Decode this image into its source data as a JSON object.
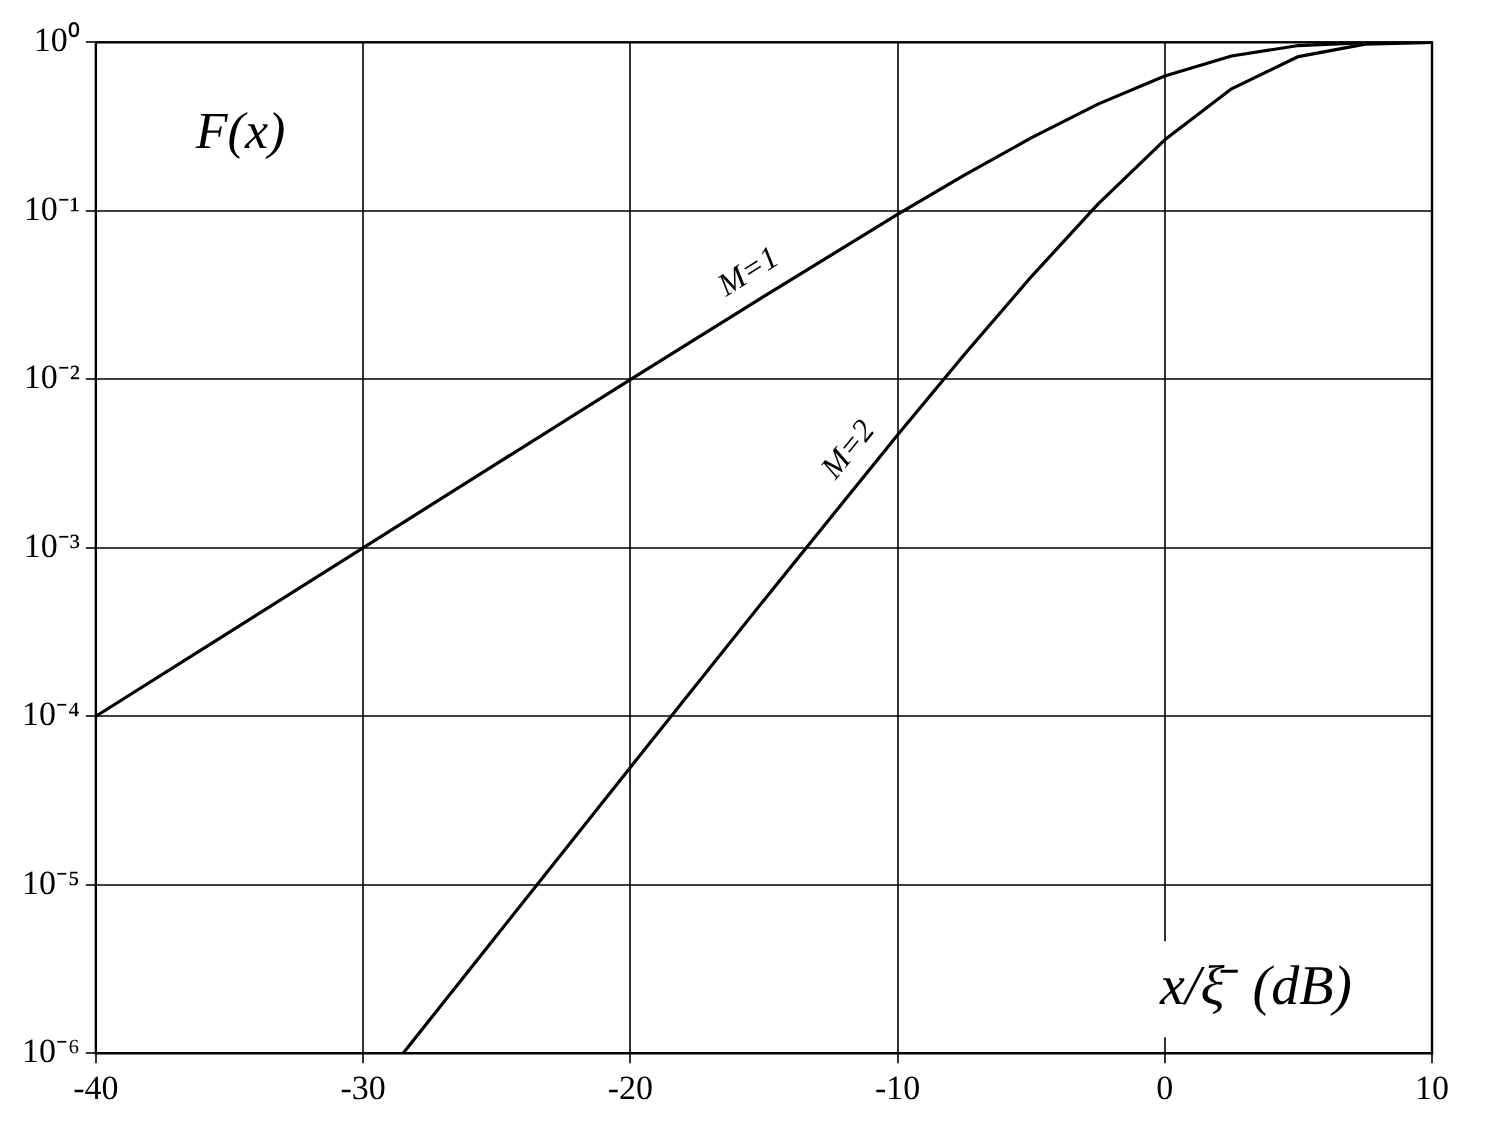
{
  "chart_data": {
    "type": "line",
    "xlabel": "x/ξ̄  (dB)",
    "ylabel": "F(x)",
    "series": [
      {
        "name": "M=1",
        "color": "#000000",
        "x": [
          -40,
          -35,
          -30,
          -25,
          -20,
          -15,
          -10,
          -7.5,
          -5,
          -2.5,
          0,
          2.5,
          5,
          7.5,
          10
        ],
        "values": [
          0.0001,
          0.000316,
          0.001,
          0.00316,
          0.00995,
          0.0311,
          0.0952,
          0.163,
          0.271,
          0.43,
          0.632,
          0.83,
          0.958,
          0.996,
          1
        ]
      },
      {
        "name": "M=2",
        "color": "#000000",
        "x": [
          -28.5,
          -25,
          -20,
          -15,
          -10,
          -7.5,
          -5,
          -2.5,
          0,
          2.5,
          5,
          7.5,
          10
        ],
        "values": [
          1e-06,
          5e-06,
          4.97e-05,
          0.000489,
          0.00468,
          0.01405,
          0.0406,
          0.1096,
          0.264,
          0.53,
          0.824,
          0.976,
          0.9995
        ]
      }
    ],
    "xlim": [
      -40,
      10
    ],
    "xticks": [
      -40,
      -30,
      -20,
      -10,
      0,
      10
    ],
    "ylim": [
      1e-06,
      1
    ],
    "yticks": [
      {
        "value": 1e-06,
        "label": "10⁻⁶"
      },
      {
        "value": 1e-05,
        "label": "10⁻⁵"
      },
      {
        "value": 0.0001,
        "label": "10⁻⁴"
      },
      {
        "value": 0.001,
        "label": "10⁻³"
      },
      {
        "value": 0.01,
        "label": "10⁻²"
      },
      {
        "value": 0.1,
        "label": "10⁻¹"
      },
      {
        "value": 1,
        "label": "10⁰"
      }
    ],
    "log": "y",
    "grid": true,
    "legend": false,
    "marker": "none",
    "line_style": "solid"
  }
}
